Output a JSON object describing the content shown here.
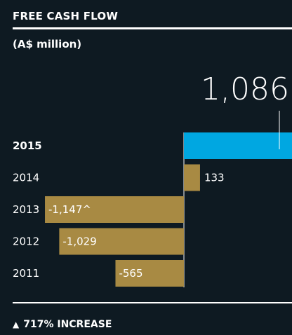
{
  "header": {
    "title": "FREE CASH FLOW",
    "unit": "(A$ million)"
  },
  "footer": {
    "change_text": "717% INCREASE",
    "icon": "triangle-up-icon"
  },
  "chart_data": {
    "type": "bar",
    "orientation": "horizontal",
    "title": "FREE CASH FLOW",
    "unit": "A$ million",
    "categories": [
      "2015",
      "2014",
      "2013",
      "2012",
      "2011"
    ],
    "values": [
      1086,
      133,
      -1147,
      -1029,
      -565
    ],
    "value_labels": [
      "1,086",
      "133",
      "-1,147^",
      "-1,029",
      "-565"
    ],
    "highlight": "2015",
    "colors": {
      "highlight": "#00a7e1",
      "default": "#a88a43"
    }
  }
}
